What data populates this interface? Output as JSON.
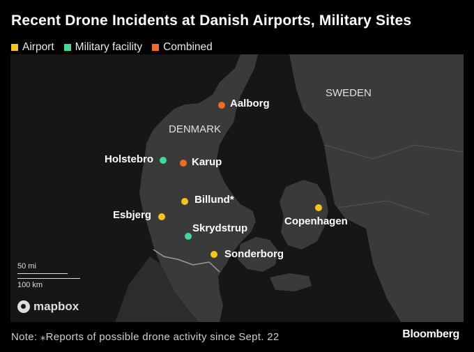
{
  "title": "Recent Drone Incidents at Danish Airports, Military Sites",
  "legend": [
    {
      "label": "Airport",
      "color": "#F5C518"
    },
    {
      "label": "Military facility",
      "color": "#3DDC97"
    },
    {
      "label": "Combined",
      "color": "#F26B21"
    }
  ],
  "map": {
    "countries": [
      {
        "label": "DENMARK"
      },
      {
        "label": "SWEDEN"
      }
    ],
    "places": [
      {
        "name": "Aalborg",
        "type": "Combined"
      },
      {
        "name": "Holstebro",
        "type": "Military facility"
      },
      {
        "name": "Karup",
        "type": "Combined"
      },
      {
        "name": "Billund*",
        "type": "Airport"
      },
      {
        "name": "Esbjerg",
        "type": "Airport"
      },
      {
        "name": "Skrydstrup",
        "type": "Military facility"
      },
      {
        "name": "Sonderborg",
        "type": "Airport"
      },
      {
        "name": "Copenhagen",
        "type": "Airport"
      }
    ],
    "scale": {
      "miles": "50 mi",
      "km": "100 km"
    },
    "attribution": "mapbox"
  },
  "note": "Note: ⁎Reports of possible drone activity since Sept. 22",
  "brand": "Bloomberg"
}
